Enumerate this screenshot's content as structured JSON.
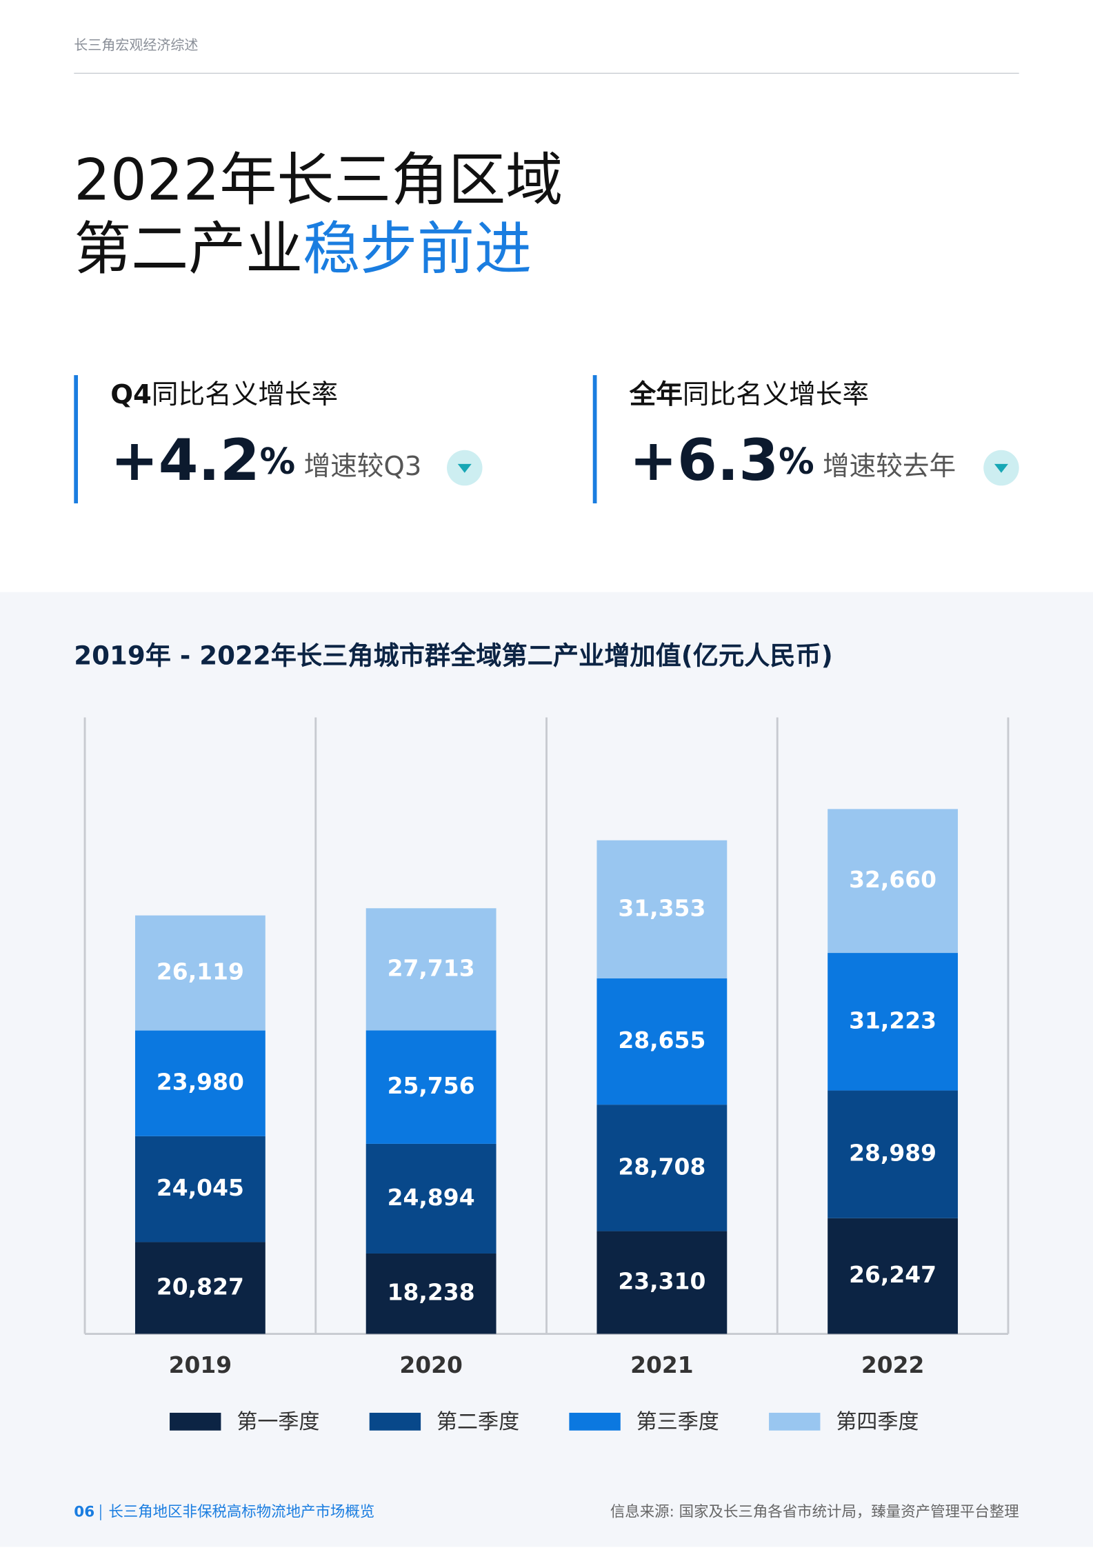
{
  "header": {
    "section": "长三角宏观经济综述"
  },
  "title": {
    "line1": "2022年长三角区域",
    "line2_plain": "第二产业",
    "line2_highlight": "稳步前进"
  },
  "kpis": [
    {
      "label_bold": "Q4",
      "label": "同比名义增长率",
      "value": "+4.2",
      "unit": "%",
      "comparison": "增速较Q3"
    },
    {
      "label_bold": "全年",
      "label": "同比名义增长率",
      "value": "+6.3",
      "unit": "%",
      "comparison": "增速较去年"
    }
  ],
  "chart_data": {
    "type": "stacked_bar",
    "title": "2019年 - 2022年长三角城市群全域第二产业增加值(亿元人民币)",
    "categories": [
      "2019",
      "2020",
      "2021",
      "2022"
    ],
    "series": [
      {
        "name": "第一季度",
        "color": "#0c2444",
        "values": [
          20827,
          18238,
          23310,
          26247
        ],
        "value_labels": [
          "20,827",
          "18,238",
          "23,310",
          "26,247"
        ]
      },
      {
        "name": "第二季度",
        "color": "#08488a",
        "values": [
          24045,
          24894,
          28708,
          28989
        ],
        "value_labels": [
          "24,045",
          "24,894",
          "28,708",
          "28,989"
        ]
      },
      {
        "name": "第三季度",
        "color": "#0b78e0",
        "values": [
          23980,
          25756,
          28655,
          31223
        ],
        "value_labels": [
          "23,980",
          "25,756",
          "28,655",
          "31,223"
        ]
      },
      {
        "name": "第四季度",
        "color": "#99c6f0",
        "values": [
          26119,
          27713,
          31353,
          32660
        ],
        "value_labels": [
          "26,119",
          "27,713",
          "31,353",
          "32,660"
        ]
      }
    ]
  },
  "footer": {
    "page": "06",
    "report": "长三角地区非保税高标物流地产市场概览",
    "source": "信息来源: 国家及长三角各省市统计局，臻量资产管理平台整理"
  }
}
